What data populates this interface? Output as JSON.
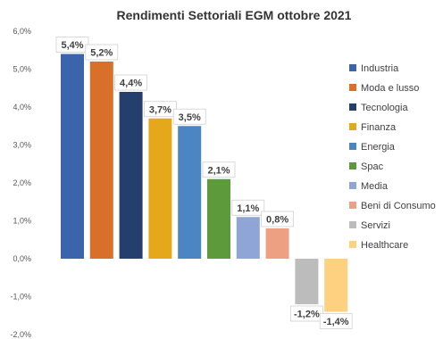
{
  "chart_data": {
    "type": "bar",
    "title": "Rendimenti Settoriali EGM ottobre 2021",
    "xlabel": "",
    "ylabel": "",
    "ylim": [
      -2.0,
      6.0
    ],
    "y_ticks": [
      "6,0%",
      "5,0%",
      "4,0%",
      "3,0%",
      "2,0%",
      "1,0%",
      "0,0%",
      "-1,0%",
      "-2,0%"
    ],
    "y_tick_values": [
      6,
      5,
      4,
      3,
      2,
      1,
      0,
      -1,
      -2
    ],
    "grid": false,
    "legend_position": "right",
    "series": [
      {
        "name": "Industria",
        "value": 5.4,
        "label": "5,4%",
        "color": "#3b64ad"
      },
      {
        "name": "Moda e lusso",
        "value": 5.2,
        "label": "5,2%",
        "color": "#d8702a"
      },
      {
        "name": "Tecnologia",
        "value": 4.4,
        "label": "4,4%",
        "color": "#243f6e"
      },
      {
        "name": "Finanza",
        "value": 3.7,
        "label": "3,7%",
        "color": "#e4a81a"
      },
      {
        "name": "Energia",
        "value": 3.5,
        "label": "3,5%",
        "color": "#4c86c2"
      },
      {
        "name": "Spac",
        "value": 2.1,
        "label": "2,1%",
        "color": "#5c9a3b"
      },
      {
        "name": "Media",
        "value": 1.1,
        "label": "1,1%",
        "color": "#8ea5d6"
      },
      {
        "name": "Beni di Consumo",
        "value": 0.8,
        "label": "0,8%",
        "color": "#eea083"
      },
      {
        "name": "Servizi",
        "value": -1.2,
        "label": "-1,2%",
        "color": "#bcbcbc"
      },
      {
        "name": "Healthcare",
        "value": -1.4,
        "label": "-1,4%",
        "color": "#fdd17f"
      }
    ]
  }
}
